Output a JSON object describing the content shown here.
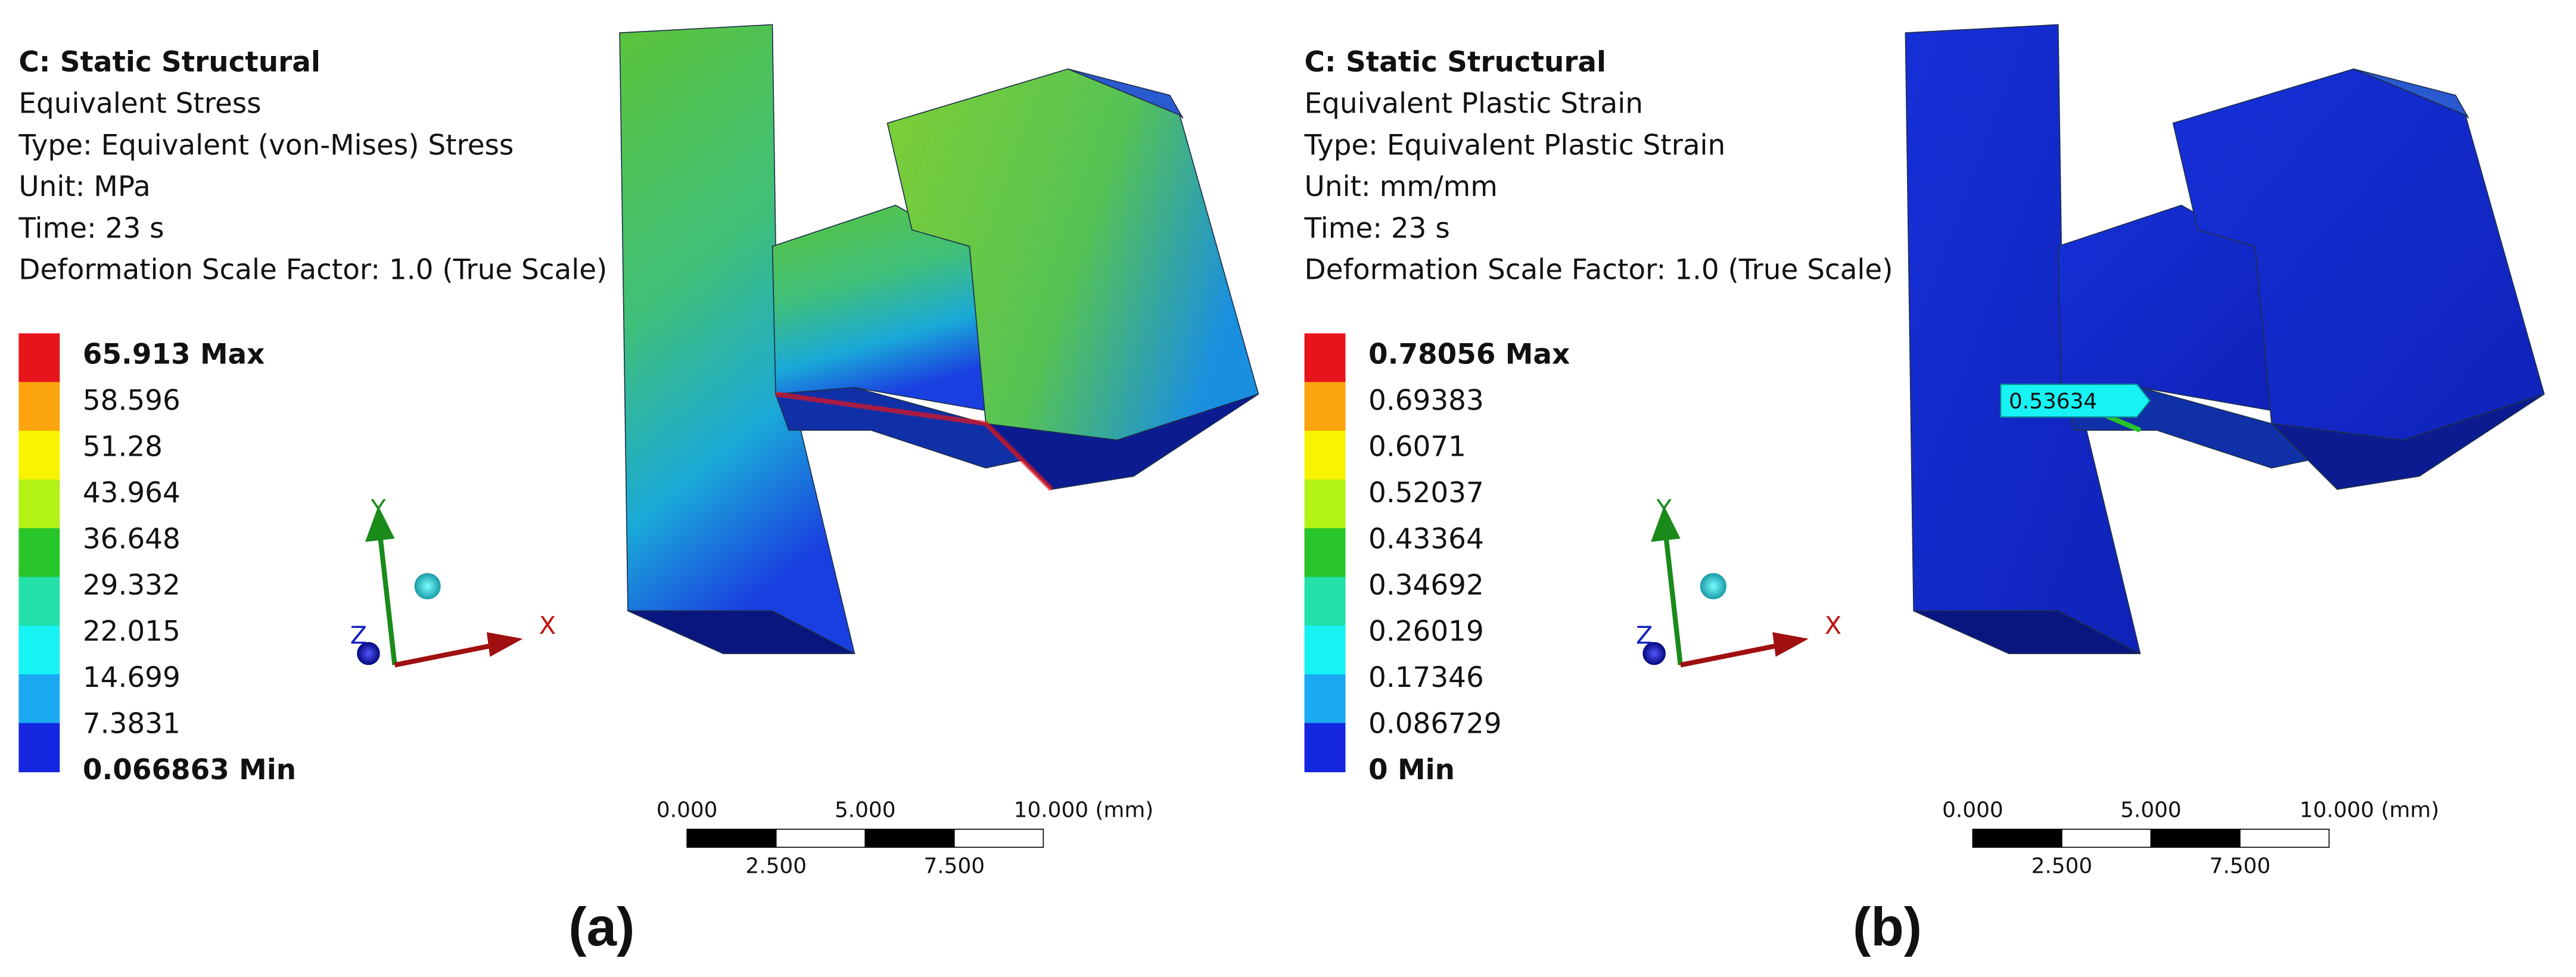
{
  "panels": [
    {
      "header": [
        "C: Static Structural",
        "Equivalent Stress",
        "Type: Equivalent (von-Mises) Stress",
        "Unit: MPa",
        "Time: 23 s",
        "Deformation Scale Factor: 1.0 (True Scale)"
      ],
      "legend": {
        "labels": [
          "65.913 Max",
          "58.596",
          "51.28",
          "43.964",
          "36.648",
          "29.332",
          "22.015",
          "14.699",
          "7.3831",
          "0.066863 Min"
        ],
        "colors": [
          "#e8141b",
          "#fca50e",
          "#f8f400",
          "#b2f214",
          "#27c52a",
          "#22e0a8",
          "#17f2f4",
          "#1aa9f2",
          "#1426e0"
        ]
      },
      "triad": [
        "Y",
        "X",
        "Z"
      ],
      "scale_top": [
        "0.000",
        "5.000",
        "10.000 (mm)"
      ],
      "scale_bottom": [
        "2.500",
        "7.500"
      ],
      "caption": "(a)"
    },
    {
      "header": [
        "C: Static Structural",
        "Equivalent Plastic Strain",
        "Type: Equivalent Plastic Strain",
        "Unit: mm/mm",
        "Time: 23 s",
        "Deformation Scale Factor: 1.0 (True Scale)"
      ],
      "legend": {
        "labels": [
          "0.78056 Max",
          "0.69383",
          "0.6071",
          "0.52037",
          "0.43364",
          "0.34692",
          "0.26019",
          "0.17346",
          "0.086729",
          "0 Min"
        ],
        "colors": [
          "#e8141b",
          "#fca50e",
          "#f8f400",
          "#b2f214",
          "#27c52a",
          "#22e0a8",
          "#17f2f4",
          "#1aa9f2",
          "#1426e0"
        ]
      },
      "triad": [
        "Y",
        "X",
        "Z"
      ],
      "probe": "0.53634",
      "scale_top": [
        "0.000",
        "5.000",
        "10.000 (mm)"
      ],
      "scale_bottom": [
        "2.500",
        "7.500"
      ],
      "caption": "(b)"
    }
  ]
}
